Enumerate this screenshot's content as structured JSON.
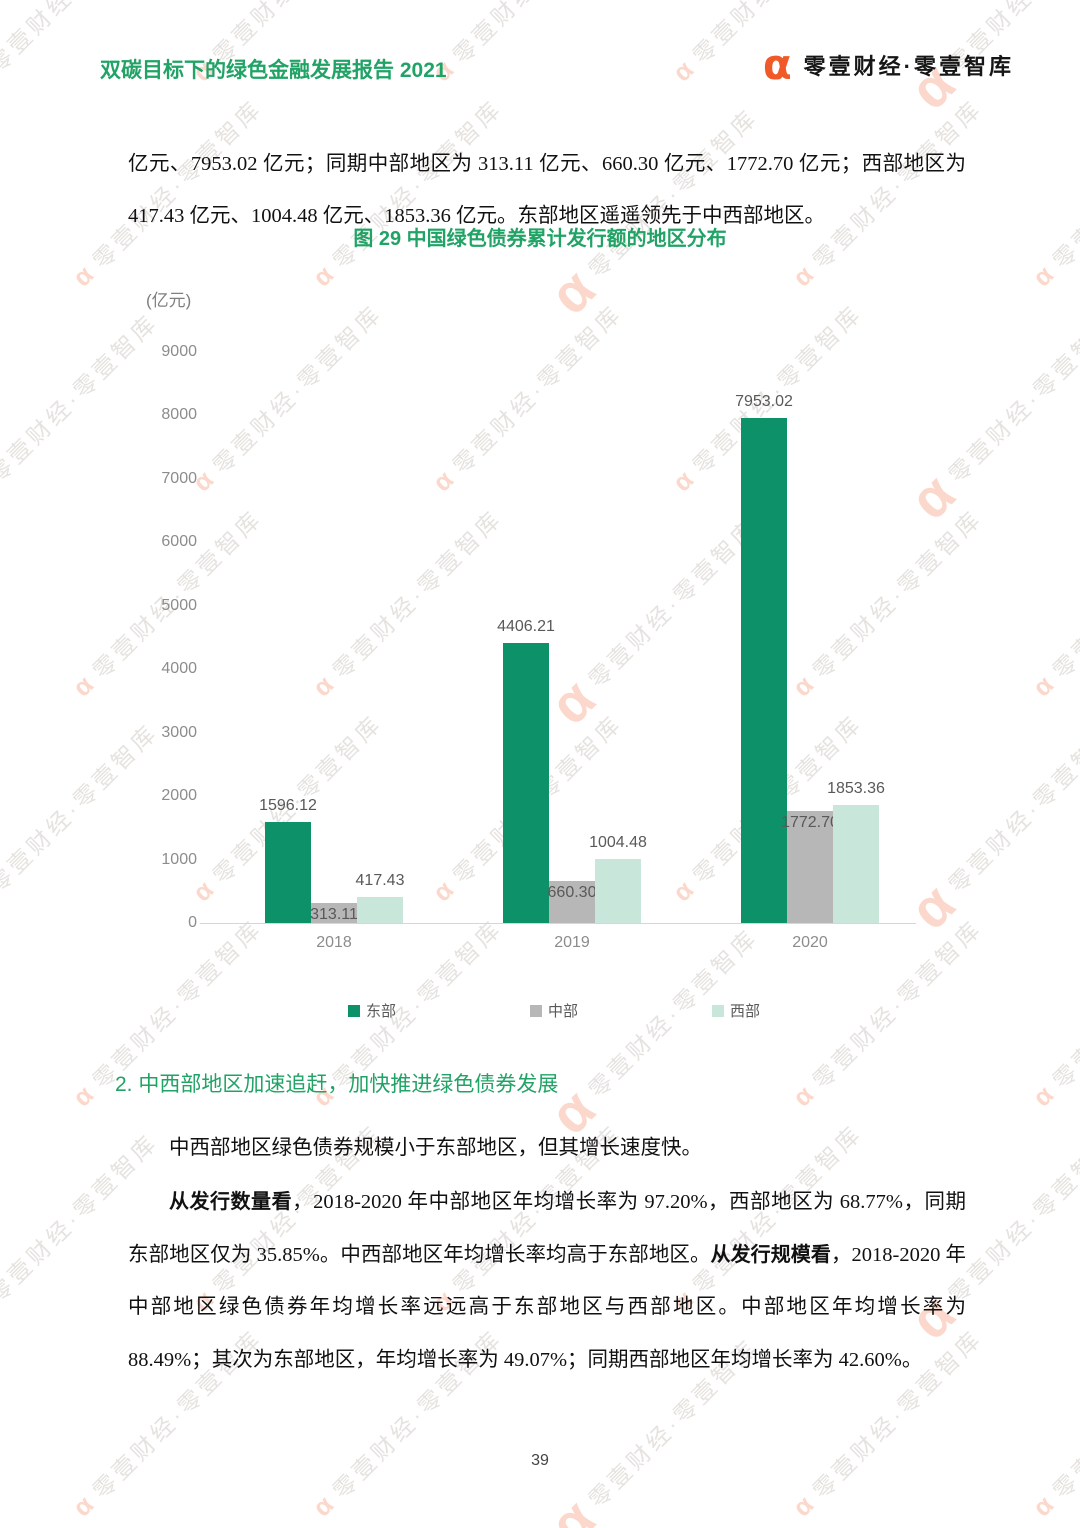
{
  "header": {
    "title": "双碳目标下的绿色金融发展报告 2021",
    "brand": "零壹财经·零壹智库",
    "brand_alpha": "α"
  },
  "intro": {
    "text": "亿元、7953.02 亿元；同期中部地区为 313.11 亿元、660.30 亿元、1772.70 亿元；西部地区为 417.43 亿元、1004.48 亿元、1853.36 亿元。东部地区遥遥领先于中西部地区。"
  },
  "chart_data": {
    "type": "bar",
    "title": "图 29 中国绿色债券累计发行额的地区分布",
    "unit": "(亿元)",
    "categories": [
      "2018",
      "2019",
      "2020"
    ],
    "series": [
      {
        "name": "东部",
        "color": "#0d9168",
        "values": [
          1596.12,
          4406.21,
          7953.02
        ],
        "value_labels": [
          "1596.12",
          "4406.21",
          "7953.02"
        ]
      },
      {
        "name": "中部",
        "color": "#b7b7b7",
        "values": [
          313.11,
          660.3,
          1772.7
        ],
        "value_labels": [
          "313.11",
          "660.30",
          "1772.70"
        ]
      },
      {
        "name": "西部",
        "color": "#c9e6da",
        "values": [
          417.43,
          1004.48,
          1853.36
        ],
        "value_labels": [
          "417.43",
          "1004.48",
          "1853.36"
        ]
      }
    ],
    "ylim": [
      0,
      9000
    ],
    "ytick_step": 1000,
    "grid": false,
    "legend_position": "bottom"
  },
  "body": {
    "heading": "2. 中西部地区加速追赶，加快推进绿色债券发展",
    "para1": "中西部地区绿色债券规模小于东部地区，但其增长速度快。",
    "para2_segments": [
      {
        "text": "从发行数量看",
        "bold": true
      },
      {
        "text": "，2018-2020 年中部地区年均增长率为 97.20%，西部地区为 68.77%，同期东部地区仅为 35.85%。中西部地区年均增长率均高于东部地区。",
        "bold": false
      },
      {
        "text": "从发行规模看",
        "bold": true
      },
      {
        "text": "，2018-2020 年中部地区绿色债券年均增长率远远高于东部地区与西部地区。中部地区年均增长率为 88.49%；其次为东部地区，年均增长率为 49.07%；同期西部地区年均增长率为 42.60%。",
        "bold": false
      }
    ]
  },
  "footer": {
    "page_number": "39"
  },
  "watermark": {
    "alpha": "α",
    "text": "零壹财经·零壹智库"
  }
}
